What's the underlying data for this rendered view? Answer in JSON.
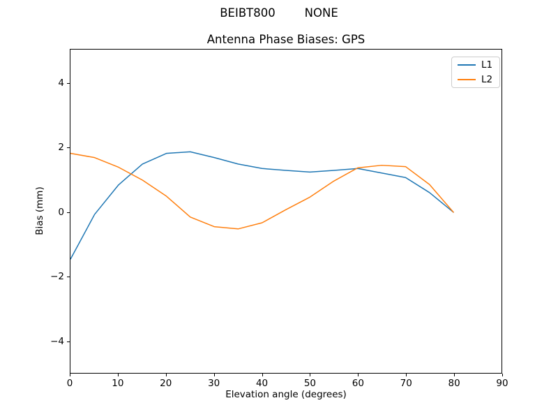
{
  "chart_data": {
    "type": "line",
    "suptitle": "BEIBT800        NONE",
    "title": "Antenna Phase Biases: GPS",
    "xlabel": "Elevation angle (degrees)",
    "ylabel": "Bias (mm)",
    "xlim": [
      0,
      90
    ],
    "ylim": [
      -5.0,
      5.06
    ],
    "grid": false,
    "legend_position": "upper right",
    "line_width": 1.5,
    "background_color": "#ffffff",
    "axis_color": "#000000",
    "x": [
      0,
      5,
      10,
      15,
      20,
      25,
      30,
      35,
      40,
      45,
      50,
      55,
      60,
      65,
      70,
      75,
      80
    ],
    "series": [
      {
        "name": "L1",
        "color": "#1f77b4",
        "values": [
          -1.45,
          -0.07,
          0.85,
          1.5,
          1.83,
          1.88,
          1.7,
          1.5,
          1.36,
          1.3,
          1.25,
          1.3,
          1.36,
          1.22,
          1.08,
          0.61,
          0.0
        ]
      },
      {
        "name": "L2",
        "color": "#ff7f0e",
        "values": [
          1.83,
          1.7,
          1.4,
          1.0,
          0.5,
          -0.15,
          -0.45,
          -0.52,
          -0.33,
          0.08,
          0.47,
          0.97,
          1.38,
          1.46,
          1.42,
          0.86,
          0.0
        ]
      }
    ],
    "xticks": [
      {
        "value": 0,
        "label": "0"
      },
      {
        "value": 10,
        "label": "10"
      },
      {
        "value": 20,
        "label": "20"
      },
      {
        "value": 30,
        "label": "30"
      },
      {
        "value": 40,
        "label": "40"
      },
      {
        "value": 50,
        "label": "50"
      },
      {
        "value": 60,
        "label": "60"
      },
      {
        "value": 70,
        "label": "70"
      },
      {
        "value": 80,
        "label": "80"
      },
      {
        "value": 90,
        "label": "90"
      }
    ],
    "yticks": [
      {
        "value": 4,
        "label": "4"
      },
      {
        "value": 2,
        "label": "2"
      },
      {
        "value": 0,
        "label": "0"
      },
      {
        "value": -2,
        "label": "−2"
      },
      {
        "value": -4,
        "label": "−4"
      }
    ]
  }
}
